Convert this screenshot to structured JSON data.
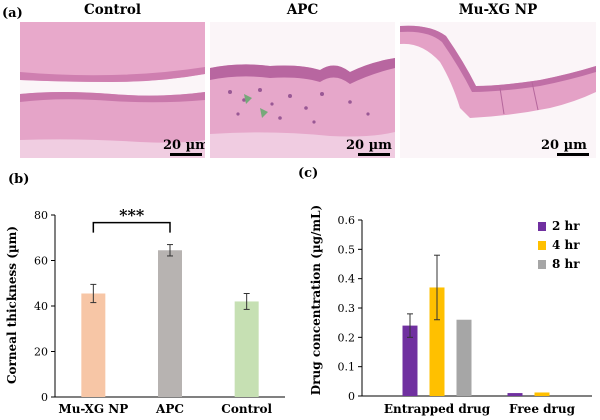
{
  "figure_a": {
    "letter": "(a)",
    "panels": [
      {
        "title": "Control",
        "scale_label": "20 µm"
      },
      {
        "title": "APC",
        "scale_label": "20 µm"
      },
      {
        "title": "Mu-XG NP",
        "scale_label": "20 µm"
      }
    ],
    "colors": {
      "tissue": "#e5a4c8",
      "tissue_light": "#f1d0e2",
      "nuclei": "#8c4b8c",
      "background": "#fbf5f8",
      "marker": "#76a97a"
    }
  },
  "figure_b": {
    "letter": "(b)",
    "chart_data": {
      "type": "bar",
      "categories": [
        "Mu-XG NP",
        "APC",
        "Control"
      ],
      "values": [
        45.5,
        64.5,
        42
      ],
      "errors": [
        4,
        2.5,
        3.5
      ],
      "colors": [
        "#f7c6a6",
        "#b7b3b1",
        "#c6e0b3"
      ],
      "xlabel": "",
      "ylabel": "Corneal thickness (µm)",
      "ylim": [
        0,
        80
      ],
      "yticks": [
        "0",
        "20",
        "40",
        "60",
        "80"
      ],
      "significance": {
        "between": [
          "Mu-XG NP",
          "APC"
        ],
        "label": "***"
      },
      "grid": false
    }
  },
  "figure_c": {
    "letter": "(c)",
    "chart_data": {
      "type": "bar",
      "categories": [
        "Entrapped drug",
        "Free drug"
      ],
      "series": [
        {
          "name": "2 hr",
          "values": [
            0.24,
            0.01
          ],
          "errors": [
            0.04,
            0.0
          ],
          "color": "#7030a0"
        },
        {
          "name": "4 hr",
          "values": [
            0.37,
            0.012
          ],
          "errors": [
            0.11,
            0.0
          ],
          "color": "#ffc000"
        },
        {
          "name": "8 hr",
          "values": [
            0.26,
            0.0
          ],
          "errors": [
            0,
            0
          ],
          "color": "#a6a6a6"
        }
      ],
      "ylabel": "Drug concentration (µg/mL)",
      "ylim": [
        0,
        0.6
      ],
      "yticks": [
        "0",
        "0.1",
        "0.2",
        "0.3",
        "0.4",
        "0.5",
        "0.6"
      ],
      "legend": "top-right",
      "grid": false
    }
  }
}
